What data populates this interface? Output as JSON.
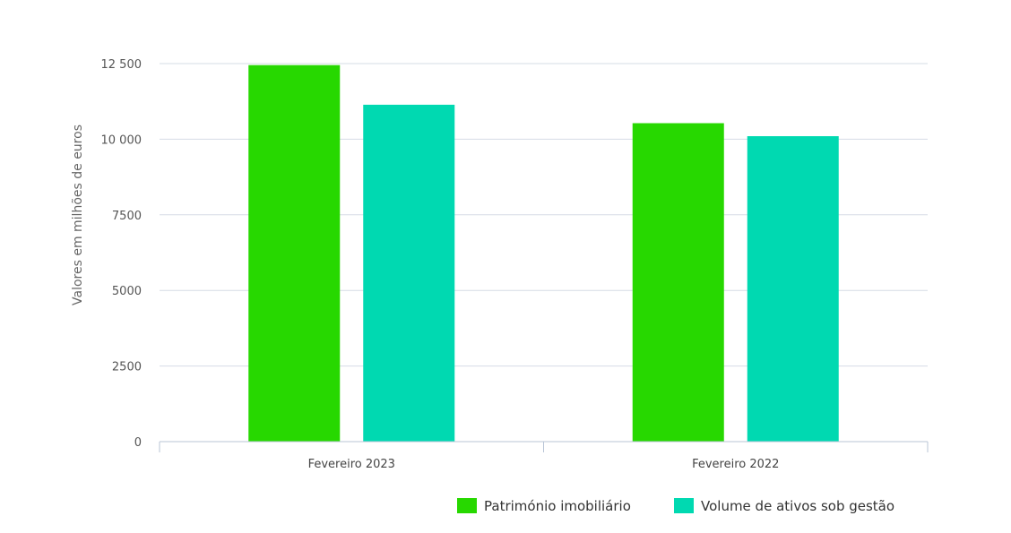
{
  "chart_data": {
    "type": "bar",
    "title": "",
    "xlabel": "",
    "ylabel": "Valores em milhões de euros",
    "categories": [
      "Fevereiro 2023",
      "Fevereiro 2022"
    ],
    "series": [
      {
        "name": "Património imobiliário",
        "color": "#27d800",
        "values": [
          12450,
          10530
        ]
      },
      {
        "name": "Volume de ativos sob gestão",
        "color": "#00d9b1",
        "values": [
          11140,
          10100
        ]
      }
    ],
    "ylim": [
      0,
      12500
    ],
    "yticks": [
      0,
      2500,
      5000,
      7500,
      10000,
      12500
    ],
    "ytick_labels": [
      "0",
      "2500",
      "5000",
      "7500",
      "10 000",
      "12 500"
    ],
    "grid": true,
    "legend_position": "bottom-right"
  }
}
